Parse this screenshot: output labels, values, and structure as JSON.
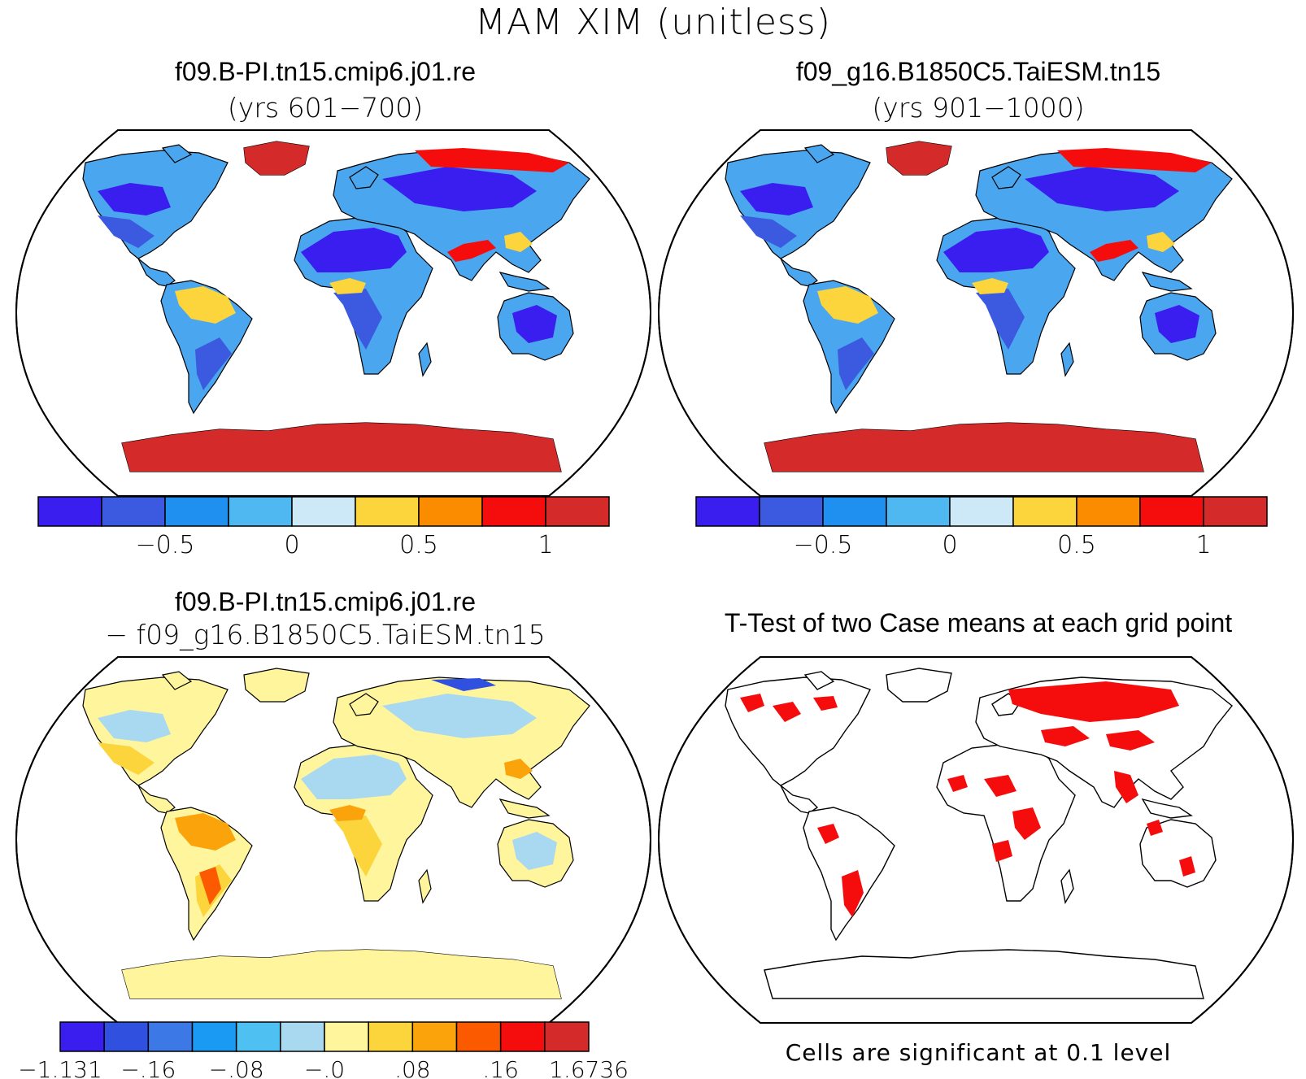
{
  "figure": {
    "title": "MAM XIM (unitless)"
  },
  "panels": [
    {
      "id": "case1",
      "title": "f09.B-PI.tn15.cmip6.j01.re",
      "subtitle": "(yrs 601−700)",
      "colorbar": {
        "colors": [
          "#3a1ef0",
          "#3c5ae0",
          "#1f8ff0",
          "#4fb8f0",
          "#cde8f6",
          "#fcd43b",
          "#fb8c00",
          "#f50d0d",
          "#d42a2a"
        ],
        "tick_labels": [
          "−0.5",
          "0",
          "0.5",
          "1"
        ]
      }
    },
    {
      "id": "case2",
      "title": "f09_g16.B1850C5.TaiESM.tn15",
      "subtitle": "(yrs 901−1000)",
      "colorbar": {
        "colors": [
          "#3a1ef0",
          "#3c5ae0",
          "#1f8ff0",
          "#4fb8f0",
          "#cde8f6",
          "#fcd43b",
          "#fb8c00",
          "#f50d0d",
          "#d42a2a"
        ],
        "tick_labels": [
          "−0.5",
          "0",
          "0.5",
          "1"
        ]
      }
    },
    {
      "id": "difference",
      "title": "f09.B-PI.tn15.cmip6.j01.re",
      "subtitle": "− f09_g16.B1850C5.TaiESM.tn15",
      "colorbar": {
        "colors": [
          "#3a1ef0",
          "#3050e0",
          "#3c78e6",
          "#1a9af2",
          "#4fc0f2",
          "#a9d9f0",
          "#fff59d",
          "#fcd43b",
          "#fba30a",
          "#fb5a00",
          "#f50d0d",
          "#d42a2a"
        ],
        "tick_labels": [
          "−1.131",
          "−.16",
          "−.08",
          "−.0",
          ".08",
          ".16",
          "1.6736"
        ]
      }
    },
    {
      "id": "ttest",
      "title": "T-Test of two Case means at each grid point",
      "note": "Cells are significant at 0.1 level",
      "significant_color": "#f50d0d"
    }
  ]
}
